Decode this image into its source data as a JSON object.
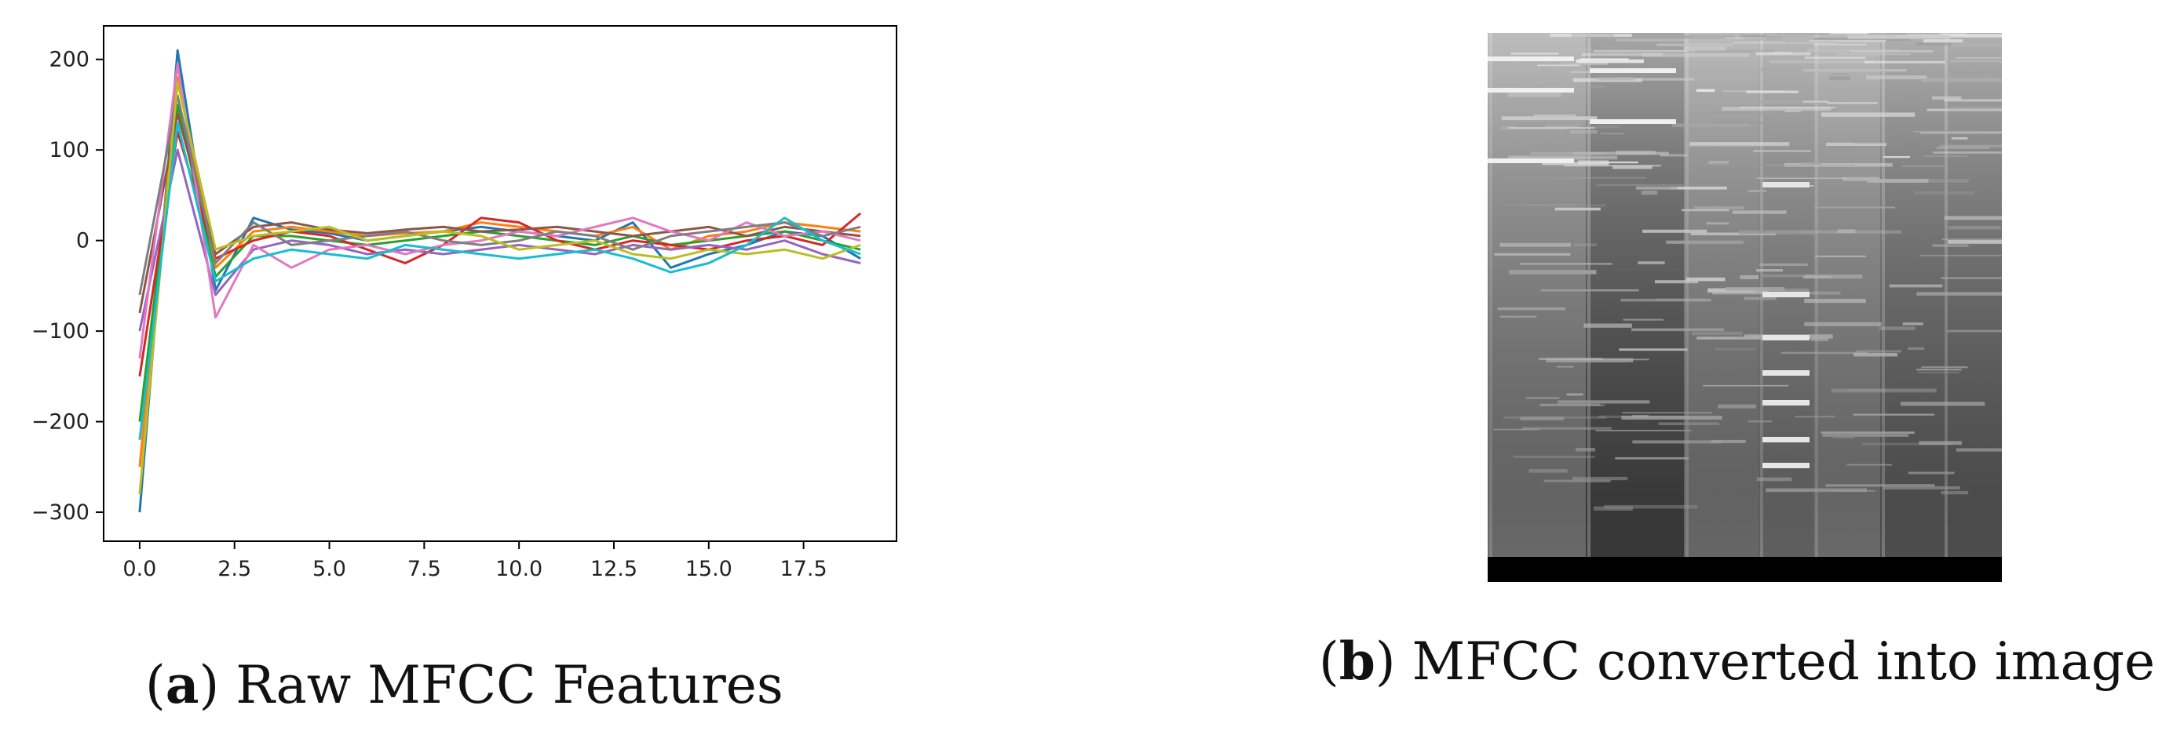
{
  "figure": {
    "panel_a": {
      "caption_open": "(",
      "caption_letter": "a",
      "caption_text": ") Raw MFCC Features"
    },
    "panel_b": {
      "caption_open": "(",
      "caption_letter": "b",
      "caption_text": ") MFCC converted into image"
    }
  },
  "chart_data": [
    {
      "type": "line",
      "title": "",
      "xlabel": "",
      "ylabel": "",
      "xlim": [
        -0.95,
        19.95
      ],
      "ylim": [
        -332,
        237
      ],
      "grid": false,
      "legend": "none",
      "x_ticks": [
        0.0,
        2.5,
        5.0,
        7.5,
        10.0,
        12.5,
        15.0,
        17.5
      ],
      "x_tick_labels": [
        "0.0",
        "2.5",
        "5.0",
        "7.5",
        "10.0",
        "12.5",
        "15.0",
        "17.5"
      ],
      "y_ticks": [
        200,
        100,
        0,
        -100,
        -200,
        -300
      ],
      "y_tick_labels": [
        "200",
        "100",
        "0",
        "−100",
        "−200",
        "−300"
      ],
      "x": [
        0,
        1,
        2,
        3,
        4,
        5,
        6,
        7,
        8,
        9,
        10,
        11,
        12,
        13,
        14,
        15,
        16,
        17,
        18,
        19
      ],
      "series": [
        {
          "color": "#1f77b4",
          "values": [
            -300,
            210,
            -55,
            25,
            12,
            8,
            0,
            5,
            10,
            15,
            10,
            5,
            0,
            20,
            -30,
            -15,
            -5,
            10,
            5,
            -20
          ]
        },
        {
          "color": "#ff7f0e",
          "values": [
            -250,
            180,
            -30,
            10,
            15,
            10,
            5,
            8,
            10,
            20,
            15,
            10,
            5,
            15,
            -10,
            5,
            10,
            20,
            15,
            10
          ]
        },
        {
          "color": "#2ca02c",
          "values": [
            -200,
            150,
            -40,
            5,
            5,
            0,
            -5,
            0,
            5,
            10,
            5,
            0,
            -5,
            5,
            -5,
            0,
            5,
            10,
            0,
            -10
          ]
        },
        {
          "color": "#d62728",
          "values": [
            -150,
            120,
            -20,
            0,
            10,
            5,
            -10,
            -25,
            -5,
            25,
            20,
            0,
            -10,
            0,
            -5,
            -10,
            0,
            5,
            -5,
            30
          ]
        },
        {
          "color": "#9467bd",
          "values": [
            -100,
            100,
            -60,
            -10,
            0,
            -5,
            -15,
            -10,
            -15,
            -10,
            -5,
            -10,
            -15,
            -5,
            -10,
            -5,
            -10,
            0,
            -15,
            -25
          ]
        },
        {
          "color": "#8c564b",
          "values": [
            -80,
            140,
            -15,
            15,
            20,
            12,
            8,
            12,
            15,
            10,
            12,
            15,
            10,
            5,
            10,
            15,
            5,
            15,
            10,
            5
          ]
        },
        {
          "color": "#e377c2",
          "values": [
            -130,
            195,
            -85,
            -5,
            -30,
            -10,
            -5,
            -15,
            -5,
            0,
            10,
            5,
            15,
            25,
            10,
            0,
            20,
            5,
            10,
            0
          ]
        },
        {
          "color": "#7f7f7f",
          "values": [
            -60,
            160,
            -25,
            20,
            -5,
            0,
            5,
            10,
            0,
            -5,
            0,
            10,
            5,
            -10,
            5,
            10,
            15,
            20,
            5,
            15
          ]
        },
        {
          "color": "#bcbd22",
          "values": [
            -280,
            175,
            -10,
            5,
            10,
            15,
            0,
            5,
            10,
            5,
            -10,
            -5,
            0,
            -15,
            -20,
            -10,
            -15,
            -10,
            -20,
            -5
          ]
        },
        {
          "color": "#17becf",
          "values": [
            -220,
            130,
            -45,
            -20,
            -10,
            -15,
            -20,
            -5,
            -10,
            -15,
            -20,
            -15,
            -10,
            -20,
            -35,
            -25,
            -5,
            25,
            0,
            -15
          ]
        }
      ]
    },
    {
      "type": "heatmap",
      "title": "",
      "grid": false,
      "legend": "none",
      "colormap": "grayscale"
    }
  ]
}
